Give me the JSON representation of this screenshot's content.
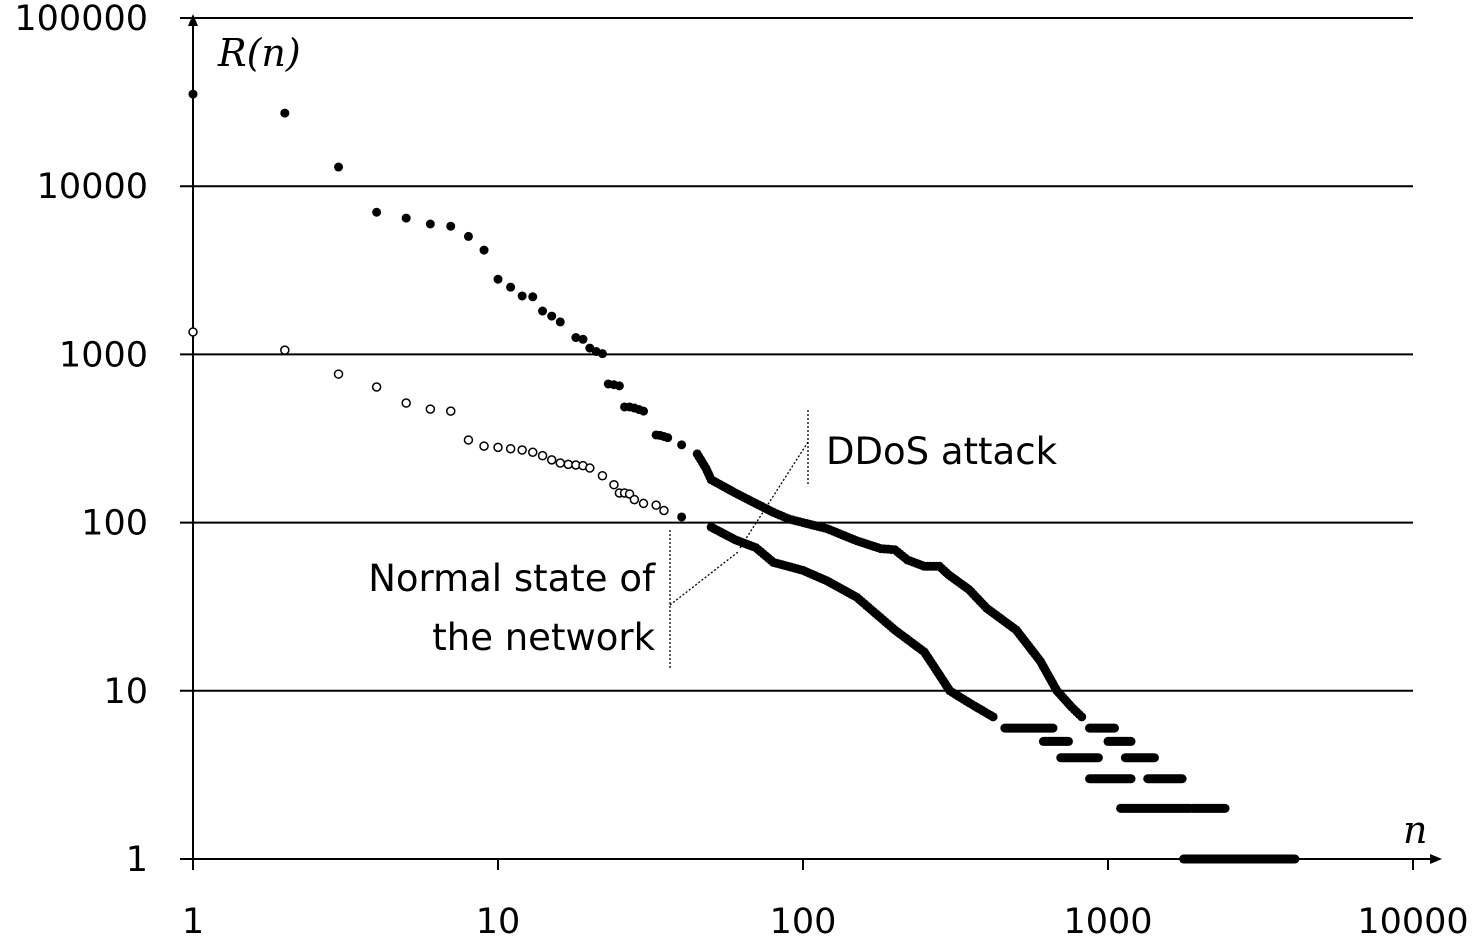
{
  "chart_data": {
    "type": "scatter",
    "xscale": "log",
    "yscale": "log",
    "xlim": [
      1,
      10000
    ],
    "ylim": [
      1,
      100000
    ],
    "grid": "horizontal",
    "xlabel": "n",
    "ylabel": "R(n)",
    "xticks": [
      "1",
      "10",
      "100",
      "1000",
      "10000"
    ],
    "yticks": [
      "1",
      "10",
      "100",
      "1000",
      "10000",
      "100000"
    ],
    "annotations": [
      "DDoS attack",
      "Normal state of",
      "the network"
    ],
    "series": [
      {
        "name": "DDoS attack",
        "marker": "filled-circle",
        "color": "#000000",
        "points": [
          [
            1,
            35300
          ],
          [
            2,
            27200
          ],
          [
            3,
            13000
          ],
          [
            4,
            7000
          ],
          [
            5,
            6460
          ],
          [
            6,
            5960
          ],
          [
            7,
            5780
          ],
          [
            8,
            5030
          ],
          [
            9,
            4170
          ],
          [
            10,
            2800
          ],
          [
            11,
            2510
          ],
          [
            12,
            2225
          ],
          [
            13,
            2200
          ],
          [
            14,
            1810
          ],
          [
            15,
            1690
          ],
          [
            16,
            1560
          ],
          [
            18,
            1260
          ],
          [
            19,
            1230
          ],
          [
            20,
            1090
          ],
          [
            21,
            1040
          ],
          [
            22,
            1010
          ],
          [
            23,
            667
          ],
          [
            24,
            660
          ],
          [
            25,
            650
          ],
          [
            26,
            487
          ],
          [
            27,
            487
          ],
          [
            28,
            480
          ],
          [
            29,
            470
          ],
          [
            30,
            460
          ],
          [
            33,
            332
          ],
          [
            34,
            330
          ],
          [
            35,
            325
          ],
          [
            36,
            320
          ],
          [
            40,
            290
          ],
          [
            45,
            256
          ],
          [
            48,
            211
          ],
          [
            50,
            180
          ],
          [
            60,
            150
          ],
          [
            70,
            130
          ],
          [
            80,
            115
          ],
          [
            90,
            105
          ],
          [
            100,
            100
          ],
          [
            120,
            92
          ],
          [
            150,
            78
          ],
          [
            180,
            70
          ],
          [
            200,
            69
          ],
          [
            220,
            60
          ],
          [
            250,
            55
          ],
          [
            280,
            55
          ],
          [
            300,
            49
          ],
          [
            350,
            40
          ],
          [
            400,
            31
          ],
          [
            500,
            23
          ],
          [
            600,
            15
          ],
          [
            680,
            10
          ],
          [
            760,
            8
          ],
          [
            820,
            7
          ]
        ],
        "runs": [
          [
            870,
            1050,
            6
          ],
          [
            1000,
            1190,
            5
          ],
          [
            1140,
            1420,
            4
          ],
          [
            1350,
            1750,
            3
          ],
          [
            1890,
            2420,
            2
          ]
        ]
      },
      {
        "name": "Normal state of the network",
        "marker": "open-circle",
        "color": "#000000",
        "points": [
          [
            1,
            1360
          ],
          [
            2,
            1060
          ],
          [
            3,
            764
          ],
          [
            4,
            640
          ],
          [
            5,
            514
          ],
          [
            6,
            473
          ],
          [
            7,
            460
          ],
          [
            8,
            310
          ],
          [
            9,
            285
          ],
          [
            10,
            280
          ],
          [
            11,
            275
          ],
          [
            12,
            270
          ],
          [
            13,
            262
          ],
          [
            14,
            250
          ],
          [
            15,
            236
          ],
          [
            16,
            226
          ],
          [
            17,
            222
          ],
          [
            18,
            220
          ],
          [
            19,
            218
          ],
          [
            20,
            211
          ],
          [
            22,
            190
          ],
          [
            24,
            168
          ],
          [
            25,
            150
          ],
          [
            26,
            150
          ],
          [
            27,
            148
          ],
          [
            28,
            137
          ],
          [
            30,
            130
          ],
          [
            33,
            127
          ],
          [
            35,
            118
          ],
          [
            40,
            108
          ],
          [
            50,
            94
          ],
          [
            60,
            79
          ],
          [
            70,
            71
          ],
          [
            80,
            58
          ],
          [
            100,
            52
          ],
          [
            120,
            45
          ],
          [
            150,
            36
          ],
          [
            200,
            23
          ],
          [
            250,
            17
          ],
          [
            303,
            10
          ],
          [
            350,
            8.5
          ],
          [
            420,
            7
          ]
        ],
        "runs": [
          [
            459,
            660,
            6
          ],
          [
            614,
            742,
            5
          ],
          [
            700,
            930,
            4
          ],
          [
            870,
            1190,
            3
          ],
          [
            1100,
            1860,
            2
          ],
          [
            1770,
            4100,
            1
          ]
        ]
      }
    ]
  }
}
